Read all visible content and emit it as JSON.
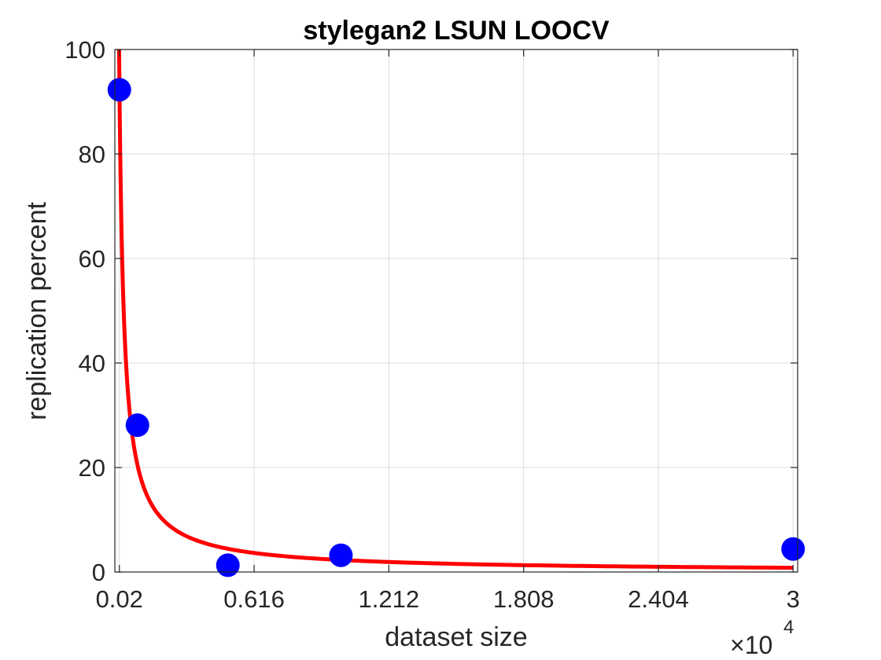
{
  "chart_data": {
    "type": "scatter",
    "title": "stylegan2 LSUN LOOCV",
    "xlabel": "dataset size",
    "ylabel": "replication percent",
    "x_exponent_base": "×10",
    "x_exponent_power": "4",
    "xlim": [
      0.0,
      3.02
    ],
    "ylim": [
      0,
      100
    ],
    "xticks": [
      0.02,
      0.616,
      1.212,
      1.808,
      2.404,
      3
    ],
    "xtick_labels": [
      "0.02",
      "0.616",
      "1.212",
      "1.808",
      "2.404",
      "3"
    ],
    "yticks": [
      0,
      20,
      40,
      60,
      80,
      100
    ],
    "ytick_labels": [
      "0",
      "20",
      "40",
      "60",
      "80",
      "100"
    ],
    "grid": true,
    "legend": "none",
    "series": [
      {
        "kind": "points",
        "color": "#0000ff",
        "x": [
          0.02,
          0.1,
          0.5,
          1.0,
          3.0
        ],
        "y": [
          92.3,
          28.1,
          1.3,
          3.2,
          4.4
        ]
      },
      {
        "kind": "fit-curve",
        "color": "#ff0000",
        "model": "y = a * x^b",
        "a": 2.3,
        "b": -0.95,
        "x_range": [
          0.02,
          3.0
        ]
      }
    ]
  }
}
